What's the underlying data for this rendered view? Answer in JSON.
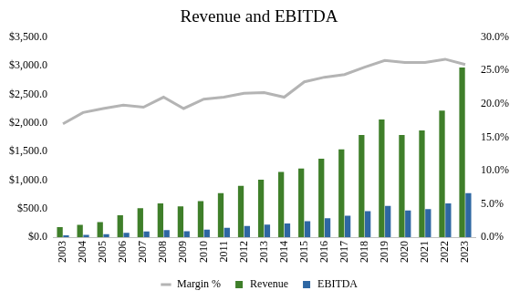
{
  "chart_data": {
    "type": "bar",
    "title": "Revenue and EBITDA",
    "categories": [
      "2003",
      "2004",
      "2005",
      "2006",
      "2007",
      "2008",
      "2009",
      "2010",
      "2011",
      "2012",
      "2013",
      "2014",
      "2015",
      "2016",
      "2017",
      "2018",
      "2019",
      "2020",
      "2021",
      "2022",
      "2023"
    ],
    "series": [
      {
        "name": "Revenue",
        "type": "bar",
        "color": "#3f7f2a",
        "values": [
          175,
          215,
          265,
          385,
          505,
          590,
          540,
          630,
          770,
          900,
          1005,
          1140,
          1200,
          1375,
          1535,
          1790,
          2060,
          1790,
          1870,
          2215,
          2970
        ]
      },
      {
        "name": "EBITDA",
        "type": "bar",
        "color": "#2e67a3",
        "values": [
          30,
          40,
          51,
          76,
          98,
          124,
          104,
          130,
          162,
          194,
          218,
          239,
          280,
          330,
          375,
          456,
          546,
          469,
          490,
          591,
          769
        ]
      },
      {
        "name": "Margin %",
        "type": "line",
        "color": "#b4b4b4",
        "axis": "y2",
        "values": [
          17.0,
          18.7,
          19.3,
          19.8,
          19.5,
          21.0,
          19.3,
          20.7,
          21.0,
          21.6,
          21.7,
          21.0,
          23.3,
          24.0,
          24.4,
          25.5,
          26.5,
          26.2,
          26.2,
          26.7,
          25.9
        ]
      }
    ],
    "ylim": [
      0,
      3500
    ],
    "yticks": [
      {
        "value": 0,
        "label": "$0.0"
      },
      {
        "value": 500,
        "label": "$500.0"
      },
      {
        "value": 1000,
        "label": "$1,000.0"
      },
      {
        "value": 1500,
        "label": "$1,500.0"
      },
      {
        "value": 2000,
        "label": "$2,000.0"
      },
      {
        "value": 2500,
        "label": "$2,500.0"
      },
      {
        "value": 3000,
        "label": "$3,000.0"
      },
      {
        "value": 3500,
        "label": "$3,500.0"
      }
    ],
    "y2lim": [
      0,
      30
    ],
    "y2ticks": [
      {
        "value": 0,
        "label": "0.0%"
      },
      {
        "value": 5,
        "label": "5.0%"
      },
      {
        "value": 10,
        "label": "10.0%"
      },
      {
        "value": 15,
        "label": "15.0%"
      },
      {
        "value": 20,
        "label": "20.0%"
      },
      {
        "value": 25,
        "label": "25.0%"
      },
      {
        "value": 30,
        "label": "30.0%"
      }
    ],
    "grid": false,
    "legend": "bottom"
  }
}
